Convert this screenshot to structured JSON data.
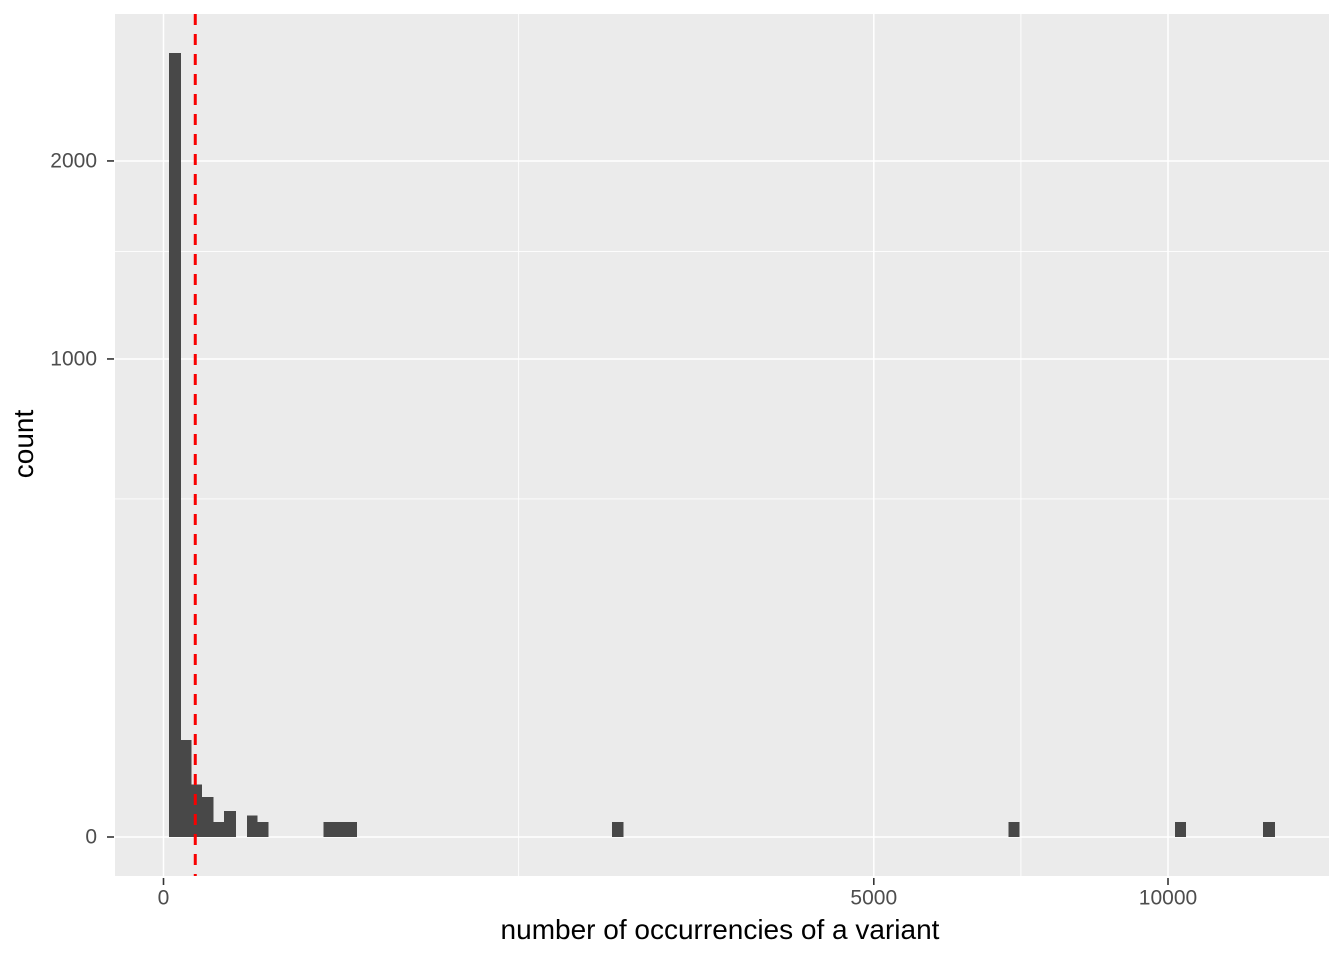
{
  "chart_data": {
    "type": "bar",
    "subtype": "histogram",
    "title": "",
    "xlabel": "number of occurrencies of a variant",
    "ylabel": "count",
    "x_scale": "sqrt",
    "y_scale": "sqrt",
    "x_ticks": [
      0,
      5000,
      10000
    ],
    "x_minor_gridlines": [
      1250,
      7286
    ],
    "y_ticks": [
      0,
      1000,
      2000
    ],
    "y_minor_gridlines": [
      500,
      1500
    ],
    "x_range_data": [
      0,
      12250
    ],
    "y_range_data": [
      0,
      2690
    ],
    "grid": "on",
    "legend": "none",
    "bars": [
      {
        "x0": 0.3,
        "x1": 3,
        "count": 2690
      },
      {
        "x0": 3,
        "x1": 7.7,
        "count": 41
      },
      {
        "x0": 7.7,
        "x1": 14.5,
        "count": 12
      },
      {
        "x0": 14.5,
        "x1": 24.6,
        "count": 7
      },
      {
        "x0": 24.6,
        "x1": 36.3,
        "count": 1
      },
      {
        "x0": 36.3,
        "x1": 52.1,
        "count": 3
      },
      {
        "x0": 68.7,
        "x1": 87.2,
        "count": 2
      },
      {
        "x0": 87.2,
        "x1": 109,
        "count": 1
      },
      {
        "x0": 253,
        "x1": 372,
        "count": 1
      },
      {
        "x0": 1993,
        "x1": 2098,
        "count": 1
      },
      {
        "x0": 7080,
        "x1": 7261,
        "count": 1
      },
      {
        "x0": 10136,
        "x1": 10357,
        "count": 1
      },
      {
        "x0": 11986,
        "x1": 12241,
        "count": 1
      }
    ],
    "vline": {
      "x": 10,
      "style": "dashed"
    },
    "colors": {
      "panel_bg": "#EBEBEB",
      "grid": "#FFFFFF",
      "bar": "#484848",
      "vline": "#F80000",
      "tick_text": "#4D4D4D",
      "title_text": "#000000",
      "tick_mark": "#333333"
    }
  }
}
